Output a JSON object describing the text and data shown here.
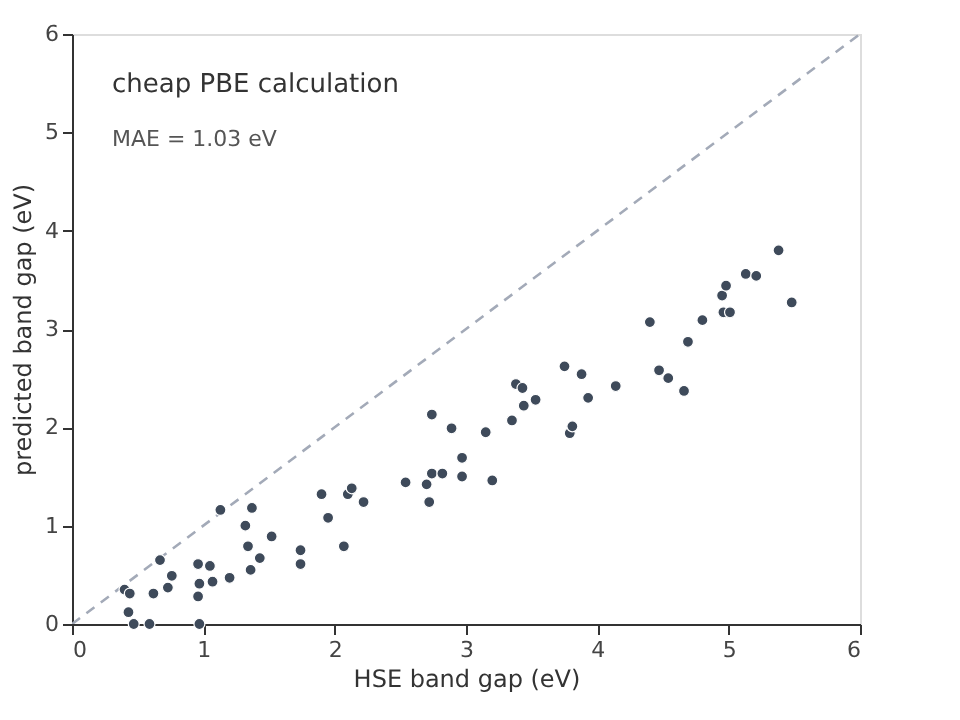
{
  "chart_data": {
    "type": "scatter",
    "xlabel": "HSE band gap (eV)",
    "ylabel": "predicted band gap (eV)",
    "xlim": [
      0,
      6
    ],
    "ylim": [
      0,
      6
    ],
    "xticks": [
      0,
      1,
      2,
      3,
      4,
      5,
      6
    ],
    "yticks": [
      0,
      1,
      2,
      3,
      4,
      5,
      6
    ],
    "grid": false,
    "marker": "circle",
    "annotations": [
      "cheap PBE calculation",
      "MAE = 1.03 eV"
    ],
    "series": [
      {
        "type": "line",
        "color": "#a3aab8",
        "line_style": "dashed",
        "marker": "none",
        "x": [
          0,
          6
        ],
        "values": [
          0,
          6
        ]
      },
      {
        "color": "#3e4a5a",
        "x": [
          0.4,
          0.44,
          0.43,
          0.47,
          0.59,
          0.62,
          0.67,
          0.73,
          0.76,
          0.96,
          0.97,
          0.96,
          0.97,
          1.05,
          1.07,
          1.13,
          1.2,
          1.34,
          1.32,
          1.36,
          1.37,
          1.43,
          1.52,
          1.74,
          1.74,
          1.9,
          1.95,
          2.07,
          2.1,
          2.13,
          2.22,
          2.54,
          2.7,
          2.74,
          2.74,
          2.72,
          2.82,
          2.89,
          2.97,
          2.97,
          3.15,
          3.2,
          3.35,
          3.38,
          3.43,
          3.44,
          3.53,
          3.75,
          3.79,
          3.81,
          3.88,
          3.93,
          4.14,
          4.4,
          4.47,
          4.54,
          4.66,
          4.69,
          4.8,
          4.95,
          4.96,
          4.98,
          5.01,
          5.13,
          5.21,
          5.38,
          5.48
        ],
        "values": [
          0.35,
          0.31,
          0.12,
          0.0,
          0.0,
          0.31,
          0.65,
          0.37,
          0.49,
          0.61,
          0.41,
          0.28,
          0.0,
          0.59,
          0.43,
          1.16,
          0.47,
          0.79,
          1.0,
          0.55,
          1.18,
          0.67,
          0.89,
          0.75,
          0.61,
          1.32,
          1.08,
          0.79,
          1.32,
          1.38,
          1.24,
          1.44,
          1.42,
          1.53,
          2.13,
          1.24,
          1.53,
          1.99,
          1.69,
          1.5,
          1.95,
          1.46,
          2.07,
          2.44,
          2.4,
          2.22,
          2.28,
          2.62,
          1.94,
          2.01,
          2.54,
          2.3,
          2.42,
          3.07,
          2.58,
          2.5,
          2.37,
          2.87,
          3.09,
          3.34,
          3.17,
          3.44,
          3.17,
          3.56,
          3.54,
          3.8,
          3.27
        ]
      }
    ]
  }
}
